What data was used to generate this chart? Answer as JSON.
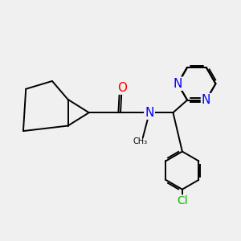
{
  "background_color": "#F0F0F0",
  "bond_color": "#000000",
  "bond_width": 1.4,
  "atom_colors": {
    "N": "#0000FF",
    "O": "#FF0000",
    "Cl": "#00BB00",
    "C": "#000000"
  }
}
